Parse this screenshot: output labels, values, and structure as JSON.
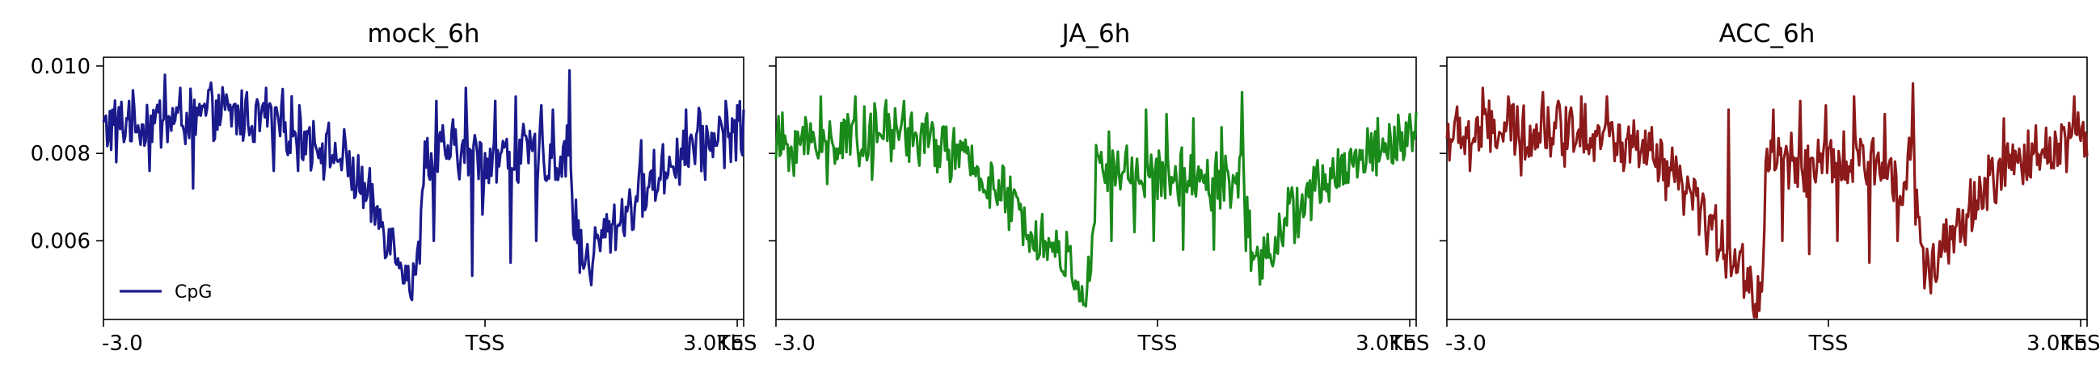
{
  "chart_data": [
    {
      "type": "line",
      "title": "mock_6h",
      "x_tick_labels": [
        "-3.0",
        "TSS",
        "TES",
        "3.0Kb"
      ],
      "y_ticks": [
        0.006,
        0.008,
        0.01
      ],
      "y_tick_labels": [
        "0.006",
        "0.008",
        "0.010"
      ],
      "ylim": [
        0.0042,
        0.0102
      ],
      "legend": {
        "position": "lower-left",
        "label": "CpG"
      },
      "series": [
        {
          "name": "CpG",
          "color": "#1a1a8c",
          "profile": [
            [
              0,
              0.0086
            ],
            [
              100,
              0.0089
            ],
            [
              140,
              0.0087
            ],
            [
              165,
              0.0083
            ],
            [
              190,
              0.0078
            ],
            [
              205,
              0.007
            ],
            [
              220,
              0.0063
            ],
            [
              232,
              0.0057
            ],
            [
              238,
              0.0052
            ],
            [
              242,
              0.0049
            ],
            [
              246,
              0.0055
            ],
            [
              250,
              0.0078
            ],
            [
              270,
              0.0081
            ],
            [
              300,
              0.0079
            ],
            [
              330,
              0.008
            ],
            [
              355,
              0.0078
            ],
            [
              362,
              0.008
            ],
            [
              364,
              0.009
            ],
            [
              366,
              0.0069
            ],
            [
              372,
              0.0058
            ],
            [
              378,
              0.0055
            ],
            [
              388,
              0.006
            ],
            [
              400,
              0.0064
            ],
            [
              420,
              0.0071
            ],
            [
              440,
              0.0077
            ],
            [
              460,
              0.0082
            ],
            [
              475,
              0.0084
            ],
            [
              500,
              0.0085
            ]
          ],
          "spikes": [
            [
              20,
              0.0092
            ],
            [
              48,
              0.0098
            ],
            [
              60,
              0.0095
            ],
            [
              85,
              0.0093
            ],
            [
              112,
              0.0094
            ],
            [
              127,
              0.0095
            ],
            [
              175,
              0.0085
            ],
            [
              260,
              0.0092
            ],
            [
              283,
              0.0095
            ],
            [
              306,
              0.0092
            ],
            [
              322,
              0.0093
            ],
            [
              342,
              0.0091
            ],
            [
              351,
              0.009
            ],
            [
              364,
              0.0099
            ],
            [
              420,
              0.0083
            ],
            [
              455,
              0.009
            ],
            [
              486,
              0.0092
            ],
            [
              495,
              0.0091
            ]
          ],
          "dips": [
            [
              10,
              0.0078
            ],
            [
              36,
              0.0076
            ],
            [
              70,
              0.0072
            ],
            [
              133,
              0.0076
            ],
            [
              152,
              0.0076
            ],
            [
              228,
              0.0055
            ],
            [
              240,
              0.0047
            ],
            [
              258,
              0.006
            ],
            [
              288,
              0.0052
            ],
            [
              296,
              0.0066
            ],
            [
              318,
              0.0055
            ],
            [
              338,
              0.006
            ],
            [
              380,
              0.0052
            ],
            [
              432,
              0.0071
            ],
            [
              470,
              0.0074
            ]
          ]
        }
      ]
    },
    {
      "type": "line",
      "title": "JA_6h",
      "x_tick_labels": [
        "-3.0",
        "TSS",
        "TES",
        "3.0Kb"
      ],
      "y_ticks": [
        0.006,
        0.008,
        0.01
      ],
      "y_tick_labels": [
        "",
        "",
        ""
      ],
      "ylim": [
        0.0042,
        0.0102
      ],
      "series": [
        {
          "name": "",
          "color": "#1a8a1a",
          "profile": [
            [
              0,
              0.0082
            ],
            [
              100,
              0.0085
            ],
            [
              140,
              0.008
            ],
            [
              165,
              0.0074
            ],
            [
              190,
              0.0066
            ],
            [
              205,
              0.0061
            ],
            [
              220,
              0.0057
            ],
            [
              232,
              0.0054
            ],
            [
              238,
              0.005
            ],
            [
              242,
              0.0047
            ],
            [
              246,
              0.0052
            ],
            [
              250,
              0.0076
            ],
            [
              270,
              0.0076
            ],
            [
              300,
              0.0075
            ],
            [
              330,
              0.0075
            ],
            [
              355,
              0.0073
            ],
            [
              362,
              0.0075
            ],
            [
              364,
              0.0085
            ],
            [
              366,
              0.0067
            ],
            [
              372,
              0.0057
            ],
            [
              378,
              0.0056
            ],
            [
              388,
              0.006
            ],
            [
              400,
              0.0065
            ],
            [
              420,
              0.0071
            ],
            [
              440,
              0.0076
            ],
            [
              460,
              0.008
            ],
            [
              475,
              0.0082
            ],
            [
              500,
              0.0084
            ]
          ],
          "spikes": [
            [
              35,
              0.0093
            ],
            [
              62,
              0.0093
            ],
            [
              85,
              0.009
            ],
            [
              100,
              0.0092
            ],
            [
              130,
              0.0086
            ],
            [
              260,
              0.0085
            ],
            [
              289,
              0.009
            ],
            [
              305,
              0.0089
            ],
            [
              326,
              0.0088
            ],
            [
              348,
              0.0086
            ],
            [
              364,
              0.0094
            ],
            [
              495,
              0.0089
            ]
          ],
          "dips": [
            [
              10,
              0.0076
            ],
            [
              40,
              0.0073
            ],
            [
              75,
              0.0074
            ],
            [
              242,
              0.0045
            ],
            [
              262,
              0.006
            ],
            [
              280,
              0.0062
            ],
            [
              295,
              0.006
            ],
            [
              318,
              0.0058
            ],
            [
              342,
              0.0058
            ],
            [
              378,
              0.005
            ],
            [
              395,
              0.006
            ]
          ]
        }
      ]
    },
    {
      "type": "line",
      "title": "ACC_6h",
      "x_tick_labels": [
        "-3.0",
        "TSS",
        "TES",
        "3.0Kb"
      ],
      "y_ticks": [
        0.006,
        0.008,
        0.01
      ],
      "y_tick_labels": [
        "",
        "",
        ""
      ],
      "ylim": [
        0.0042,
        0.0102
      ],
      "series": [
        {
          "name": "",
          "color": "#8c1a1a",
          "profile": [
            [
              0,
              0.0084
            ],
            [
              100,
              0.0086
            ],
            [
              140,
              0.0082
            ],
            [
              165,
              0.0077
            ],
            [
              190,
              0.007
            ],
            [
              205,
              0.0063
            ],
            [
              220,
              0.0058
            ],
            [
              232,
              0.0053
            ],
            [
              238,
              0.0049
            ],
            [
              242,
              0.0046
            ],
            [
              246,
              0.0051
            ],
            [
              250,
              0.008
            ],
            [
              270,
              0.0078
            ],
            [
              300,
              0.0077
            ],
            [
              330,
              0.0078
            ],
            [
              355,
              0.0075
            ],
            [
              362,
              0.0077
            ],
            [
              364,
              0.0088
            ],
            [
              366,
              0.0067
            ],
            [
              372,
              0.0057
            ],
            [
              378,
              0.0053
            ],
            [
              388,
              0.0057
            ],
            [
              400,
              0.0063
            ],
            [
              420,
              0.0072
            ],
            [
              440,
              0.0077
            ],
            [
              460,
              0.008
            ],
            [
              475,
              0.0082
            ],
            [
              500,
              0.0085
            ]
          ],
          "spikes": [
            [
              28,
              0.0095
            ],
            [
              48,
              0.0093
            ],
            [
              75,
              0.0094
            ],
            [
              105,
              0.0093
            ],
            [
              125,
              0.0093
            ],
            [
              160,
              0.0086
            ],
            [
              220,
              0.009
            ],
            [
              255,
              0.009
            ],
            [
              276,
              0.0092
            ],
            [
              296,
              0.0091
            ],
            [
              318,
              0.0093
            ],
            [
              342,
              0.0089
            ],
            [
              364,
              0.0096
            ],
            [
              435,
              0.0088
            ],
            [
              490,
              0.0093
            ]
          ],
          "dips": [
            [
              18,
              0.0076
            ],
            [
              58,
              0.0075
            ],
            [
              92,
              0.0077
            ],
            [
              138,
              0.0076
            ],
            [
              244,
              0.0044
            ],
            [
              262,
              0.006
            ],
            [
              283,
              0.0057
            ],
            [
              305,
              0.006
            ],
            [
              330,
              0.0055
            ],
            [
              352,
              0.006
            ],
            [
              378,
              0.0048
            ],
            [
              402,
              0.0062
            ]
          ]
        }
      ]
    }
  ]
}
